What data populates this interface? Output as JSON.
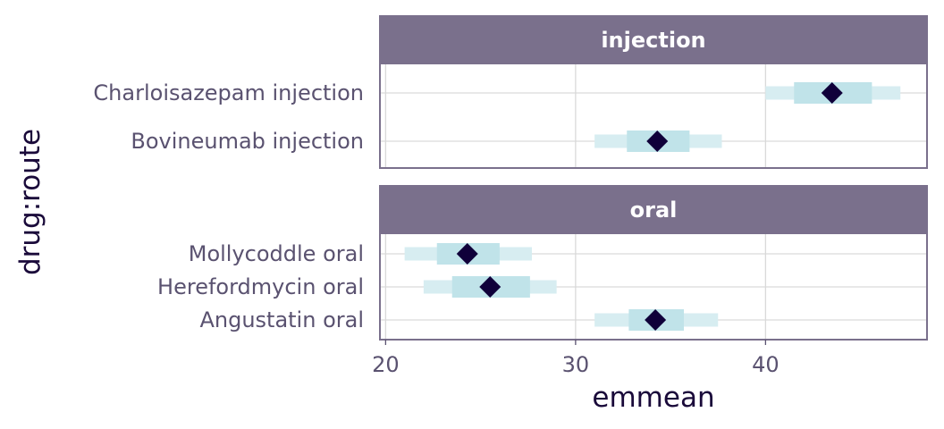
{
  "chart_data": {
    "type": "forest",
    "xlabel": "emmean",
    "ylabel": "drug:route",
    "xlim": [
      19.7,
      48.5
    ],
    "xticks": [
      20,
      30,
      40
    ],
    "grid": true,
    "panels": [
      {
        "strip": "injection",
        "rows": [
          {
            "label": "Charloisazepam injection",
            "estimate": 43.5,
            "inner": [
              41.5,
              45.6
            ],
            "outer": [
              40.0,
              47.1
            ]
          },
          {
            "label": "Bovineumab injection",
            "estimate": 34.3,
            "inner": [
              32.7,
              36.0
            ],
            "outer": [
              31.0,
              37.7
            ]
          }
        ]
      },
      {
        "strip": "oral",
        "rows": [
          {
            "label": "Mollycoddle oral",
            "estimate": 24.3,
            "inner": [
              22.7,
              26.0
            ],
            "outer": [
              21.0,
              27.7
            ]
          },
          {
            "label": "Herefordmycin oral",
            "estimate": 25.5,
            "inner": [
              23.5,
              27.6
            ],
            "outer": [
              22.0,
              29.0
            ]
          },
          {
            "label": "Angustatin oral",
            "estimate": 34.2,
            "inner": [
              32.8,
              35.7
            ],
            "outer": [
              31.0,
              37.5
            ]
          }
        ]
      }
    ],
    "colors": {
      "strip": "#7a708c",
      "border": "#7a708c",
      "grid": "#d9d9d9",
      "outer_interval": "#d7edf1",
      "inner_interval": "#c0e3e9",
      "point": "#10003a"
    }
  }
}
